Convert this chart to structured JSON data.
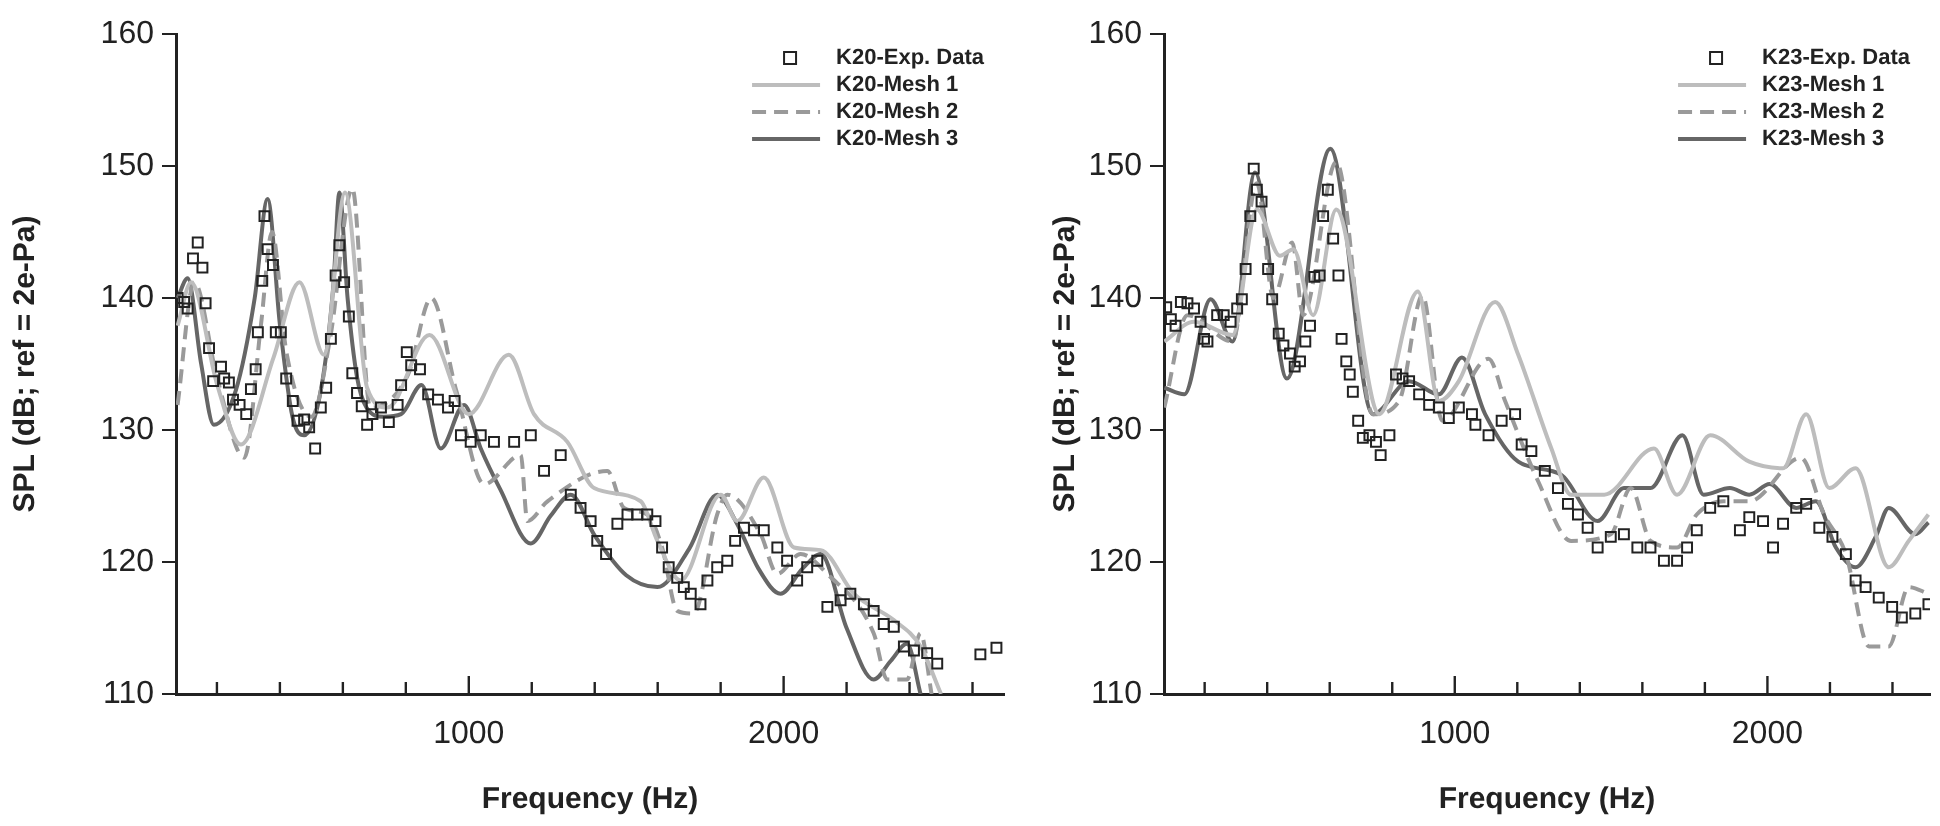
{
  "chart_data": [
    {
      "type": "line",
      "xlabel": "Frequency (Hz)",
      "ylabel": "SPL (dB; ref = 2e-Pa)",
      "xlim": [
        70,
        2700
      ],
      "ylim": [
        110,
        160
      ],
      "yticks": [
        110,
        120,
        130,
        140,
        150,
        160
      ],
      "xticks": [
        {
          "value": 200,
          "label": null
        },
        {
          "value": 400,
          "label": null
        },
        {
          "value": 600,
          "label": null
        },
        {
          "value": 800,
          "label": null
        },
        {
          "value": 1000,
          "label": "1000"
        },
        {
          "value": 1200,
          "label": null
        },
        {
          "value": 1400,
          "label": null
        },
        {
          "value": 1600,
          "label": null
        },
        {
          "value": 1800,
          "label": null
        },
        {
          "value": 2000,
          "label": "2000"
        },
        {
          "value": 2200,
          "label": null
        },
        {
          "value": 2400,
          "label": null
        },
        {
          "value": 2600,
          "label": null
        }
      ],
      "legend": "top right",
      "series": [
        {
          "name": "K20-Exp. Data",
          "type": "scatter",
          "marker": "square",
          "color": "#222222",
          "x": [
            75,
            96,
            107,
            124,
            139,
            154,
            164,
            175,
            188,
            213,
            223,
            238,
            251,
            272,
            293,
            308,
            323,
            330,
            344,
            351,
            361,
            378,
            387,
            403,
            420,
            441,
            456,
            477,
            493,
            512,
            530,
            547,
            562,
            577,
            589,
            604,
            619,
            630,
            645,
            660,
            677,
            694,
            721,
            746,
            774,
            785,
            803,
            817,
            845,
            871,
            902,
            934,
            955,
            975,
            1006,
            1038,
            1080,
            1144,
            1197,
            1239,
            1292,
            1324,
            1355,
            1387,
            1408,
            1436,
            1472,
            1504,
            1535,
            1567,
            1593,
            1614,
            1635,
            1662,
            1683,
            1705,
            1736,
            1758,
            1789,
            1821,
            1846,
            1874,
            1906,
            1937,
            1980,
            2011,
            2043,
            2075,
            2107,
            2139,
            2181,
            2212,
            2255,
            2286,
            2318,
            2350,
            2382,
            2414,
            2456,
            2488,
            2625,
            2676
          ],
          "values": [
            140.0,
            139.7,
            139.2,
            143.0,
            144.2,
            142.3,
            139.6,
            136.2,
            133.7,
            134.8,
            133.9,
            133.6,
            132.3,
            131.9,
            131.2,
            133.1,
            134.6,
            137.4,
            141.3,
            146.2,
            143.7,
            142.5,
            137.4,
            137.4,
            133.9,
            132.2,
            130.7,
            130.8,
            130.2,
            128.6,
            131.7,
            133.2,
            136.9,
            141.7,
            144.0,
            141.2,
            138.6,
            134.3,
            132.8,
            131.8,
            130.4,
            131.2,
            131.7,
            130.6,
            131.9,
            133.4,
            135.9,
            134.9,
            134.6,
            132.7,
            132.3,
            131.7,
            132.2,
            129.6,
            129.1,
            129.6,
            129.1,
            129.1,
            129.6,
            126.9,
            128.1,
            125.1,
            124.1,
            123.1,
            121.6,
            120.6,
            122.9,
            123.6,
            123.6,
            123.6,
            123.1,
            121.1,
            119.6,
            118.8,
            118.1,
            117.6,
            116.8,
            118.6,
            119.6,
            120.1,
            121.6,
            122.6,
            122.4,
            122.4,
            121.1,
            120.1,
            118.6,
            119.6,
            120.1,
            116.6,
            117.1,
            117.6,
            116.8,
            116.3,
            115.3,
            115.1,
            113.6,
            113.3,
            113.1,
            112.3,
            113.0,
            113.5
          ]
        },
        {
          "name": "K20-Mesh 1",
          "type": "line",
          "line_style": "solid",
          "marker": "none",
          "color": "#bdbdbd",
          "x": [
            75,
            118,
            200,
            276,
            380,
            462,
            540,
            607,
            677,
            742,
            875,
            1000,
            1127,
            1207,
            1313,
            1398,
            1546,
            1599,
            1673,
            1800,
            1853,
            1937,
            2033,
            2118,
            2223,
            2350,
            2435,
            2500
          ],
          "values": [
            137.9,
            141.2,
            133.5,
            128.9,
            135.5,
            141.2,
            135.7,
            148.0,
            133.2,
            131.7,
            137.2,
            131.2,
            135.7,
            131.2,
            129.1,
            125.6,
            124.6,
            121.6,
            118.6,
            125.1,
            123.1,
            126.4,
            121.1,
            120.9,
            117.6,
            115.6,
            113.6,
            110
          ]
        },
        {
          "name": "K20-Mesh 2",
          "type": "line",
          "line_style": "dashed",
          "marker": "none",
          "color": "#9a9a9a",
          "x": [
            75,
            128,
            200,
            287,
            340,
            375,
            420,
            500,
            560,
            630,
            687,
            807,
            881,
            960,
            1049,
            1165,
            1186,
            1250,
            1440,
            1493,
            1567,
            1614,
            1662,
            1714,
            1789,
            1821,
            1927,
            1980,
            2054,
            2139,
            2286,
            2329,
            2392,
            2435,
            2470
          ],
          "values": [
            131.9,
            141.2,
            134,
            127.9,
            138,
            145,
            136,
            131,
            137,
            148.3,
            131.7,
            134.2,
            140.0,
            133,
            125.9,
            128.1,
            123.1,
            124.6,
            126.9,
            124.1,
            123.6,
            121.1,
            116.3,
            116.1,
            123.6,
            125.1,
            122.1,
            119.1,
            120.6,
            119.1,
            114.6,
            111.1,
            111.1,
            114.6,
            110
          ]
        },
        {
          "name": "K20-Mesh 3",
          "type": "line",
          "line_style": "solid",
          "marker": "none",
          "color": "#666666",
          "x": [
            75,
            107,
            150,
            190,
            260,
            320,
            361,
            400,
            440,
            477,
            530,
            570,
            589,
            615,
            645,
            675,
            730,
            785,
            850,
            911,
            985,
            1038,
            1100,
            1197,
            1260,
            1324,
            1400,
            1500,
            1599,
            1700,
            1789,
            1850,
            1920,
            1990,
            2060,
            2118,
            2200,
            2286,
            2340,
            2392,
            2435
          ],
          "values": [
            140,
            141.5,
            135,
            130.4,
            133,
            140,
            147.5,
            138,
            131,
            129.6,
            133,
            141,
            148,
            140,
            134,
            131.7,
            131,
            131.2,
            133.4,
            128.6,
            131.9,
            128.6,
            125.5,
            121.4,
            123.5,
            125.1,
            122,
            119,
            118.1,
            121,
            125.1,
            123,
            119.5,
            117.6,
            119.5,
            120.6,
            115,
            111.1,
            112.5,
            113.8,
            110
          ]
        }
      ]
    },
    {
      "type": "line",
      "xlabel": "Frequency (Hz)",
      "ylabel": "SPL (dB; ref = 2e-Pa)",
      "xlim": [
        70,
        2520
      ],
      "ylim": [
        110,
        160
      ],
      "yticks": [
        110,
        120,
        130,
        140,
        150,
        160
      ],
      "xticks": [
        {
          "value": 200,
          "label": null
        },
        {
          "value": 400,
          "label": null
        },
        {
          "value": 600,
          "label": null
        },
        {
          "value": 800,
          "label": null
        },
        {
          "value": 1000,
          "label": "1000"
        },
        {
          "value": 1200,
          "label": null
        },
        {
          "value": 1400,
          "label": null
        },
        {
          "value": 1600,
          "label": null
        },
        {
          "value": 1800,
          "label": null
        },
        {
          "value": 2000,
          "label": "2000"
        },
        {
          "value": 2200,
          "label": null
        },
        {
          "value": 2400,
          "label": null
        }
      ],
      "legend": "top right",
      "series": [
        {
          "name": "K23-Exp. Data",
          "type": "scatter",
          "marker": "square",
          "color": "#222222",
          "x": [
            77,
            92,
            107,
            124,
            145,
            166,
            187,
            198,
            209,
            240,
            261,
            283,
            304,
            319,
            331,
            346,
            357,
            367,
            382,
            403,
            416,
            437,
            452,
            473,
            488,
            505,
            522,
            537,
            551,
            568,
            579,
            594,
            611,
            628,
            638,
            653,
            664,
            674,
            691,
            706,
            727,
            748,
            763,
            791,
            812,
            833,
            854,
            886,
            918,
            949,
            981,
            1013,
            1055,
            1066,
            1108,
            1150,
            1193,
            1214,
            1245,
            1288,
            1330,
            1362,
            1394,
            1425,
            1457,
            1499,
            1541,
            1584,
            1626,
            1669,
            1711,
            1743,
            1774,
            1817,
            1859,
            1912,
            1942,
            1986,
            2018,
            2050,
            2092,
            2124,
            2166,
            2208,
            2251,
            2282,
            2314,
            2356,
            2399,
            2430,
            2473,
            2515
          ],
          "values": [
            139.3,
            138.4,
            137.9,
            139.7,
            139.6,
            139.2,
            138.2,
            136.9,
            136.7,
            138.7,
            138.7,
            138.2,
            139.2,
            139.9,
            142.2,
            146.2,
            149.8,
            148.2,
            147.3,
            142.2,
            139.9,
            137.3,
            136.4,
            135.8,
            134.8,
            135.2,
            136.7,
            137.9,
            141.6,
            141.7,
            146.2,
            148.2,
            144.5,
            141.7,
            136.9,
            135.2,
            134.2,
            132.9,
            130.7,
            129.4,
            129.6,
            129.1,
            128.1,
            129.6,
            134.2,
            133.9,
            133.7,
            132.7,
            131.9,
            131.7,
            130.9,
            131.7,
            131.2,
            130.4,
            129.6,
            130.7,
            131.2,
            128.9,
            128.4,
            126.9,
            125.6,
            124.4,
            123.6,
            122.6,
            121.1,
            121.9,
            122.1,
            121.1,
            121.1,
            120.1,
            120.1,
            121.1,
            122.4,
            124.1,
            124.6,
            122.4,
            123.4,
            123.1,
            121.1,
            122.9,
            124.1,
            124.4,
            122.6,
            121.9,
            120.6,
            118.6,
            118.1,
            117.3,
            116.6,
            115.8,
            116.1,
            116.8
          ]
        },
        {
          "name": "K23-Mesh 1",
          "type": "line",
          "line_style": "solid",
          "marker": "none",
          "color": "#bdbdbd",
          "x": [
            71,
            166,
            289,
            367,
            441,
            484,
            547,
            621,
            759,
            882,
            949,
            1013,
            1129,
            1203,
            1309,
            1372,
            1478,
            1637,
            1711,
            1817,
            1942,
            2050,
            2124,
            2198,
            2282,
            2388,
            2452,
            2515
          ],
          "values": [
            136.7,
            138.2,
            137.2,
            146.7,
            143.2,
            143.7,
            138.7,
            146.7,
            131.2,
            140.5,
            132.2,
            133.7,
            139.7,
            135.7,
            128.6,
            125.1,
            125.1,
            128.6,
            125.1,
            129.6,
            127.6,
            127.1,
            131.2,
            125.6,
            127.1,
            119.6,
            121.6,
            123.6
          ]
        },
        {
          "name": "K23-Mesh 2",
          "type": "line",
          "line_style": "dashed",
          "marker": "none",
          "color": "#9a9a9a",
          "x": [
            71,
            145,
            289,
            367,
            420,
            480,
            515,
            621,
            738,
            822,
            897,
            960,
            1108,
            1161,
            1267,
            1372,
            1499,
            1563,
            1626,
            1711,
            1774,
            1859,
            1942,
            2107,
            2181,
            2251,
            2325,
            2388,
            2452,
            2515
          ],
          "values": [
            131.7,
            138.7,
            136.7,
            148.7,
            140,
            144.2,
            138.7,
            150.3,
            131.2,
            132.2,
            140.2,
            130.7,
            135.4,
            132.2,
            126.1,
            121.6,
            122.1,
            125.6,
            121.6,
            121.1,
            123.6,
            124.6,
            124.6,
            127.9,
            123.6,
            120.6,
            113.6,
            113.6,
            118.1,
            117.6
          ]
        },
        {
          "name": "K23-Mesh 3",
          "type": "line",
          "line_style": "solid",
          "marker": "none",
          "color": "#666666",
          "x": [
            71,
            135,
            219,
            289,
            361,
            463,
            602,
            738,
            854,
            949,
            1023,
            1097,
            1203,
            1341,
            1457,
            1541,
            1626,
            1728,
            1796,
            1880,
            1942,
            2007,
            2092,
            2155,
            2219,
            2282,
            2346,
            2388,
            2473,
            2515
          ],
          "values": [
            133.2,
            132.7,
            139.9,
            136.7,
            149.5,
            133.9,
            151.3,
            131.2,
            133.7,
            132.7,
            135.5,
            131.2,
            127.6,
            126.6,
            123.1,
            125.6,
            125.6,
            129.6,
            125.1,
            125.6,
            125.1,
            125.9,
            124.1,
            124.6,
            121.1,
            119.6,
            121.9,
            124.1,
            122.1,
            123
          ]
        }
      ]
    }
  ]
}
